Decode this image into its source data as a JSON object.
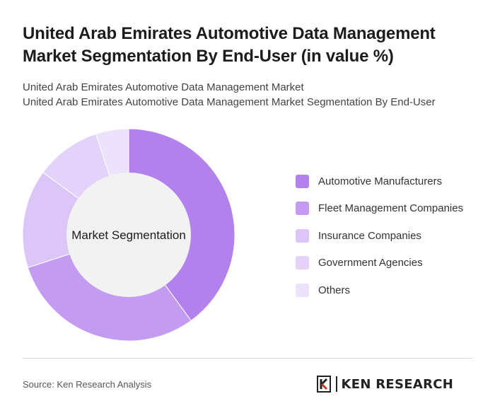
{
  "header": {
    "title": "United Arab Emirates Automotive Data Management Market Segmentation By End-User (in value %)",
    "subtitle_line1": "United Arab Emirates Automotive Data Management Market",
    "subtitle_line2": "United Arab Emirates Automotive Data Management Market Segmentation By End-User"
  },
  "chart_data": {
    "type": "pie",
    "variant": "donut",
    "center_label": "Market Segmentation",
    "categories": [
      "Automotive Manufacturers",
      "Fleet Management Companies",
      "Insurance Companies",
      "Government Agencies",
      "Others"
    ],
    "values": [
      40,
      30,
      15,
      10,
      5
    ],
    "colors": [
      "#b381ec",
      "#c39bf0",
      "#dcc6f7",
      "#e3d2f9",
      "#ece2fb"
    ],
    "legend_position": "right"
  },
  "footer": {
    "source": "Source: Ken Research Analysis",
    "logo_text": "KEN RESEARCH"
  }
}
